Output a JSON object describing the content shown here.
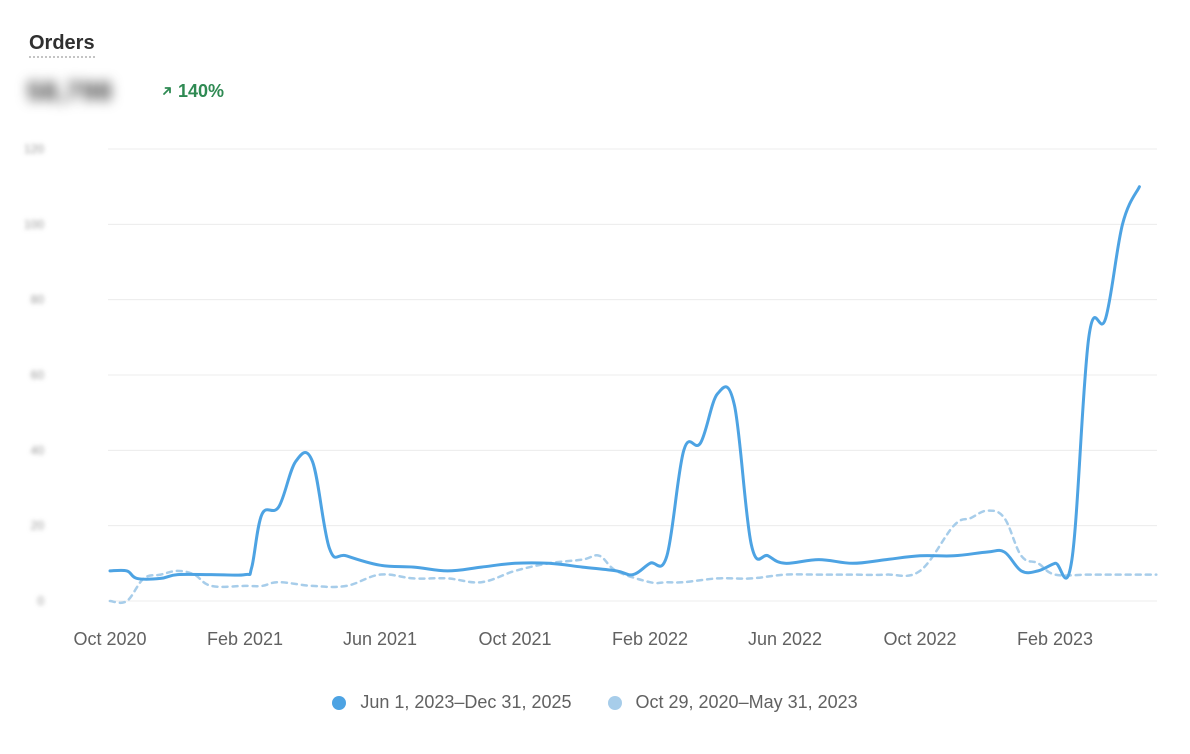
{
  "card": {
    "title": "Orders",
    "metric_value": "58,798",
    "delta": "140%",
    "delta_direction": "up",
    "delta_icon": "arrow-up-right-icon"
  },
  "colors": {
    "primary_series": "#4da3e3",
    "comparison_series": "#a7cdea",
    "positive": "#2f8a53",
    "grid": "#ececec"
  },
  "chart_data": {
    "type": "line",
    "title": "",
    "xlabel": "",
    "ylabel": "",
    "x_tick_labels": [
      "Oct 2020",
      "Feb 2021",
      "Jun 2021",
      "Oct 2021",
      "Feb 2022",
      "Jun 2022",
      "Oct 2022",
      "Feb 2023"
    ],
    "y_tick_labels": [
      "0",
      "20",
      "40",
      "60",
      "80",
      "100",
      "120"
    ],
    "ylim": [
      0,
      120
    ],
    "grid": true,
    "legend_position": "bottom-center",
    "x_unit": "months since Oct 2020",
    "series": [
      {
        "name": "Jun 1, 2023–Dec 31, 2025",
        "style": "solid",
        "points": [
          [
            0,
            8
          ],
          [
            0.5,
            8
          ],
          [
            0.8,
            6
          ],
          [
            1.5,
            6
          ],
          [
            2,
            7
          ],
          [
            3,
            7
          ],
          [
            4,
            7
          ],
          [
            4.2,
            9
          ],
          [
            4.5,
            23
          ],
          [
            5,
            25
          ],
          [
            5.5,
            37
          ],
          [
            6,
            37
          ],
          [
            6.5,
            14
          ],
          [
            7,
            12
          ],
          [
            8,
            9.5
          ],
          [
            9,
            9
          ],
          [
            10,
            8
          ],
          [
            11,
            9
          ],
          [
            12,
            10
          ],
          [
            13,
            10
          ],
          [
            14,
            9
          ],
          [
            15,
            8
          ],
          [
            15.5,
            7
          ],
          [
            16,
            10
          ],
          [
            16.5,
            12
          ],
          [
            17,
            40
          ],
          [
            17.5,
            42
          ],
          [
            18,
            55
          ],
          [
            18.5,
            52
          ],
          [
            19,
            15
          ],
          [
            19.5,
            12
          ],
          [
            20,
            10
          ],
          [
            21,
            11
          ],
          [
            22,
            10
          ],
          [
            23,
            11
          ],
          [
            24,
            12
          ],
          [
            25,
            12
          ],
          [
            26,
            13
          ],
          [
            26.5,
            13
          ],
          [
            27,
            8
          ],
          [
            27.5,
            8
          ],
          [
            28,
            10
          ],
          [
            28.5,
            11
          ],
          [
            29,
            70
          ],
          [
            29.5,
            75
          ],
          [
            30,
            100
          ],
          [
            30.5,
            110
          ]
        ]
      },
      {
        "name": "Oct 29, 2020–May 31, 2023",
        "style": "dashed",
        "points": [
          [
            0,
            0
          ],
          [
            0.5,
            0
          ],
          [
            1,
            6
          ],
          [
            1.5,
            7
          ],
          [
            2,
            8
          ],
          [
            2.5,
            7
          ],
          [
            3,
            4
          ],
          [
            4,
            4
          ],
          [
            4.5,
            4
          ],
          [
            5,
            5
          ],
          [
            6,
            4
          ],
          [
            7,
            4
          ],
          [
            8,
            7
          ],
          [
            9,
            6
          ],
          [
            10,
            6
          ],
          [
            11,
            5
          ],
          [
            12,
            8
          ],
          [
            13,
            10
          ],
          [
            14,
            11
          ],
          [
            14.5,
            12
          ],
          [
            15,
            8
          ],
          [
            16,
            5
          ],
          [
            16.5,
            5
          ],
          [
            17,
            5
          ],
          [
            18,
            6
          ],
          [
            19,
            6
          ],
          [
            20,
            7
          ],
          [
            21,
            7
          ],
          [
            22,
            7
          ],
          [
            23,
            7
          ],
          [
            24,
            8
          ],
          [
            25,
            20
          ],
          [
            25.5,
            22
          ],
          [
            26,
            24
          ],
          [
            26.5,
            22
          ],
          [
            27,
            12
          ],
          [
            27.5,
            10
          ],
          [
            28,
            7
          ],
          [
            29,
            7
          ],
          [
            30,
            7
          ],
          [
            31,
            7
          ]
        ]
      }
    ]
  }
}
